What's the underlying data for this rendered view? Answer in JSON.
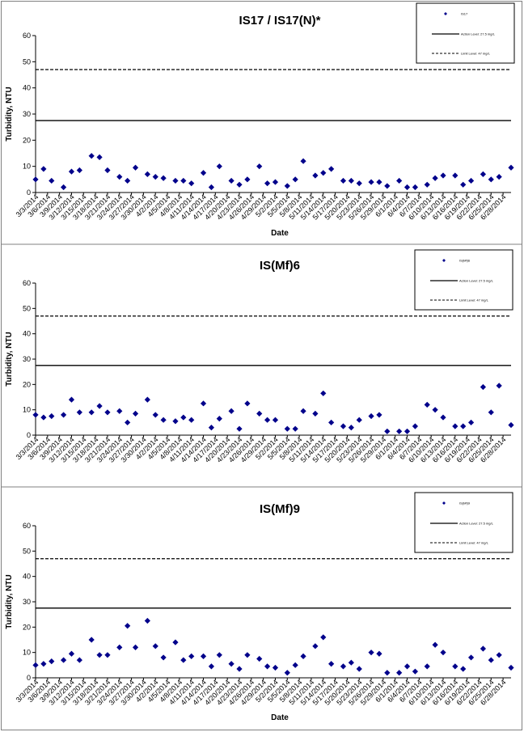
{
  "chart_data": [
    {
      "type": "scatter",
      "title": "IS17 / IS17(N)*",
      "xlabel": "Date",
      "ylabel": "Turbidity, NTU",
      "ylim": [
        0,
        60
      ],
      "yticks": [
        "0",
        "10",
        "20",
        "30",
        "40",
        "50",
        "60"
      ],
      "x_ticks": [
        "3/3/2014",
        "3/6/2014",
        "3/9/2014",
        "3/12/2014",
        "3/15/2014",
        "3/18/2014",
        "3/21/2014",
        "3/24/2014",
        "3/27/2014",
        "3/30/2014",
        "4/2/2014",
        "4/5/2014",
        "4/8/2014",
        "4/11/2014",
        "4/14/2014",
        "4/17/2014",
        "4/20/2014",
        "4/23/2014",
        "4/26/2014",
        "4/29/2014",
        "5/2/2014",
        "5/5/2014",
        "5/8/2014",
        "5/11/2014",
        "5/14/2014",
        "5/17/2014",
        "5/20/2014",
        "5/23/2014",
        "5/26/2014",
        "5/29/2014",
        "6/1/2014",
        "6/4/2014",
        "6/7/2014",
        "6/10/2014",
        "6/13/2014",
        "6/16/2014",
        "6/19/2014",
        "6/22/2014",
        "6/25/2014",
        "6/28/2014"
      ],
      "legend": {
        "placement": "top-right",
        "point_label": "IS17",
        "action_label": "Action Level: 27.5 mg/L",
        "limit_label": "Limit Level: 47 mg/L"
      },
      "action_level": 27.5,
      "limit_level": 47,
      "series": [
        {
          "name": "IS17",
          "color": "#00008B",
          "points": [
            [
              "3/3/2014",
              5
            ],
            [
              "3/5/2014",
              9
            ],
            [
              "3/7/2014",
              4.5
            ],
            [
              "3/10/2014",
              2
            ],
            [
              "3/12/2014",
              8
            ],
            [
              "3/14/2014",
              8.5
            ],
            [
              "3/17/2014",
              14
            ],
            [
              "3/19/2014",
              13.5
            ],
            [
              "3/21/2014",
              8.5
            ],
            [
              "3/24/2014",
              6
            ],
            [
              "3/26/2014",
              4.5
            ],
            [
              "3/28/2014",
              9.5
            ],
            [
              "3/31/2014",
              7
            ],
            [
              "4/2/2014",
              6
            ],
            [
              "4/4/2014",
              5.5
            ],
            [
              "4/7/2014",
              4.5
            ],
            [
              "4/9/2014",
              4.5
            ],
            [
              "4/11/2014",
              3.5
            ],
            [
              "4/14/2014",
              7.5
            ],
            [
              "4/16/2014",
              2
            ],
            [
              "4/18/2014",
              10
            ],
            [
              "4/21/2014",
              4.5
            ],
            [
              "4/23/2014",
              3
            ],
            [
              "4/25/2014",
              5
            ],
            [
              "4/28/2014",
              10
            ],
            [
              "4/30/2014",
              3.5
            ],
            [
              "5/2/2014",
              4
            ],
            [
              "5/5/2014",
              2.5
            ],
            [
              "5/7/2014",
              5
            ],
            [
              "5/9/2014",
              12
            ],
            [
              "5/12/2014",
              6.5
            ],
            [
              "5/14/2014",
              7.5
            ],
            [
              "5/16/2014",
              9
            ],
            [
              "5/19/2014",
              4.5
            ],
            [
              "5/21/2014",
              4.5
            ],
            [
              "5/23/2014",
              3.5
            ],
            [
              "5/26/2014",
              4
            ],
            [
              "5/28/2014",
              4
            ],
            [
              "5/30/2014",
              2.5
            ],
            [
              "6/2/2014",
              4.5
            ],
            [
              "6/4/2014",
              2
            ],
            [
              "6/6/2014",
              2
            ],
            [
              "6/9/2014",
              3
            ],
            [
              "6/11/2014",
              5.5
            ],
            [
              "6/13/2014",
              6.5
            ],
            [
              "6/16/2014",
              6.5
            ],
            [
              "6/18/2014",
              3
            ],
            [
              "6/20/2014",
              4.5
            ],
            [
              "6/23/2014",
              7
            ],
            [
              "6/25/2014",
              5
            ],
            [
              "6/27/2014",
              6
            ],
            [
              "6/30/2014",
              9.5
            ]
          ]
        }
      ]
    },
    {
      "type": "scatter",
      "title": "IS(Mf)6",
      "xlabel": "",
      "ylabel": "Turbidity, NTU",
      "ylim": [
        0,
        60
      ],
      "yticks": [
        "0",
        "10",
        "20",
        "30",
        "40",
        "50",
        "60"
      ],
      "x_ticks": [
        "3/3/2014",
        "3/6/2014",
        "3/9/2014",
        "3/12/2014",
        "3/15/2014",
        "3/18/2014",
        "3/21/2014",
        "3/24/2014",
        "3/27/2014",
        "3/30/2014",
        "4/2/2014",
        "4/5/2014",
        "4/8/2014",
        "4/11/2014",
        "4/14/2014",
        "4/17/2014",
        "4/20/2014",
        "4/23/2014",
        "4/26/2014",
        "4/29/2014",
        "5/2/2014",
        "5/5/2014",
        "5/8/2014",
        "5/11/2014",
        "5/14/2014",
        "5/17/2014",
        "5/20/2014",
        "5/23/2014",
        "5/26/2014",
        "5/29/2014",
        "6/1/2014",
        "6/4/2014",
        "6/7/2014",
        "6/10/2014",
        "6/13/2014",
        "6/16/2014",
        "6/19/2014",
        "6/22/2014",
        "6/25/2014",
        "6/28/2014"
      ],
      "legend": {
        "placement": "top-right",
        "point_label": "IS(Mf)6",
        "action_label": "Action Level: 27.5 mg/L",
        "limit_label": "Limit Level: 47 mg/L"
      },
      "action_level": 27.5,
      "limit_level": 47,
      "series": [
        {
          "name": "IS(Mf)6",
          "color": "#00008B",
          "points": [
            [
              "3/3/2014",
              8
            ],
            [
              "3/5/2014",
              7
            ],
            [
              "3/7/2014",
              7.5
            ],
            [
              "3/10/2014",
              8
            ],
            [
              "3/12/2014",
              14
            ],
            [
              "3/14/2014",
              9
            ],
            [
              "3/17/2014",
              9
            ],
            [
              "3/19/2014",
              11.5
            ],
            [
              "3/21/2014",
              9
            ],
            [
              "3/24/2014",
              9.5
            ],
            [
              "3/26/2014",
              5
            ],
            [
              "3/28/2014",
              8.5
            ],
            [
              "3/31/2014",
              14
            ],
            [
              "4/2/2014",
              8
            ],
            [
              "4/4/2014",
              6
            ],
            [
              "4/7/2014",
              5.5
            ],
            [
              "4/9/2014",
              7
            ],
            [
              "4/11/2014",
              6
            ],
            [
              "4/14/2014",
              12.5
            ],
            [
              "4/16/2014",
              3
            ],
            [
              "4/18/2014",
              6.5
            ],
            [
              "4/21/2014",
              9.5
            ],
            [
              "4/23/2014",
              2.5
            ],
            [
              "4/25/2014",
              12.5
            ],
            [
              "4/28/2014",
              8.5
            ],
            [
              "4/30/2014",
              6
            ],
            [
              "5/2/2014",
              6
            ],
            [
              "5/5/2014",
              2.5
            ],
            [
              "5/7/2014",
              2.5
            ],
            [
              "5/9/2014",
              9.5
            ],
            [
              "5/12/2014",
              8.5
            ],
            [
              "5/14/2014",
              16.5
            ],
            [
              "5/16/2014",
              5
            ],
            [
              "5/19/2014",
              3.5
            ],
            [
              "5/21/2014",
              3
            ],
            [
              "5/23/2014",
              6
            ],
            [
              "5/26/2014",
              7.5
            ],
            [
              "5/28/2014",
              8
            ],
            [
              "5/30/2014",
              1.5
            ],
            [
              "6/2/2014",
              1.5
            ],
            [
              "6/4/2014",
              1.5
            ],
            [
              "6/6/2014",
              3.5
            ],
            [
              "6/9/2014",
              12
            ],
            [
              "6/11/2014",
              10
            ],
            [
              "6/13/2014",
              7
            ],
            [
              "6/16/2014",
              3.5
            ],
            [
              "6/18/2014",
              3.5
            ],
            [
              "6/20/2014",
              5
            ],
            [
              "6/23/2014",
              19
            ],
            [
              "6/25/2014",
              9
            ],
            [
              "6/27/2014",
              19.5
            ],
            [
              "6/30/2014",
              4
            ]
          ]
        }
      ]
    },
    {
      "type": "scatter",
      "title": "IS(Mf)9",
      "xlabel": "Date",
      "ylabel": "Turbidity, NTU",
      "ylim": [
        0,
        60
      ],
      "yticks": [
        "0",
        "10",
        "20",
        "30",
        "40",
        "50",
        "60"
      ],
      "x_ticks": [
        "3/3/2014",
        "3/6/2014",
        "3/9/2014",
        "3/12/2014",
        "3/15/2014",
        "3/18/2014",
        "3/21/2014",
        "3/24/2014",
        "3/27/2014",
        "3/30/2014",
        "4/2/2014",
        "4/5/2014",
        "4/8/2014",
        "4/11/2014",
        "4/14/2014",
        "4/17/2014",
        "4/20/2014",
        "4/23/2014",
        "4/26/2014",
        "4/29/2014",
        "5/2/2014",
        "5/5/2014",
        "5/8/2014",
        "5/11/2014",
        "5/14/2014",
        "5/17/2014",
        "5/20/2014",
        "5/23/2014",
        "5/26/2014",
        "5/29/2014",
        "6/1/2014",
        "6/4/2014",
        "6/7/2014",
        "6/10/2014",
        "6/13/2014",
        "6/16/2014",
        "6/19/2014",
        "6/22/2014",
        "6/25/2014",
        "6/28/2014"
      ],
      "legend": {
        "placement": "top-right",
        "point_label": "IS(Mf)9",
        "action_label": "Action Level: 27.5 mg/L",
        "limit_label": "Limit Level: 47 mg/L"
      },
      "action_level": 27.5,
      "limit_level": 47,
      "series": [
        {
          "name": "IS(Mf)9",
          "color": "#00008B",
          "points": [
            [
              "3/3/2014",
              5
            ],
            [
              "3/5/2014",
              5.5
            ],
            [
              "3/7/2014",
              6.5
            ],
            [
              "3/10/2014",
              7
            ],
            [
              "3/12/2014",
              9.5
            ],
            [
              "3/14/2014",
              7
            ],
            [
              "3/17/2014",
              15
            ],
            [
              "3/19/2014",
              9
            ],
            [
              "3/21/2014",
              9
            ],
            [
              "3/24/2014",
              12
            ],
            [
              "3/26/2014",
              20.5
            ],
            [
              "3/28/2014",
              12
            ],
            [
              "3/31/2014",
              22.5
            ],
            [
              "4/2/2014",
              12.5
            ],
            [
              "4/4/2014",
              8
            ],
            [
              "4/7/2014",
              14
            ],
            [
              "4/9/2014",
              7
            ],
            [
              "4/11/2014",
              8.5
            ],
            [
              "4/14/2014",
              8.5
            ],
            [
              "4/16/2014",
              4.5
            ],
            [
              "4/18/2014",
              9
            ],
            [
              "4/21/2014",
              5.5
            ],
            [
              "4/23/2014",
              3.5
            ],
            [
              "4/25/2014",
              9
            ],
            [
              "4/28/2014",
              7.5
            ],
            [
              "4/30/2014",
              4.5
            ],
            [
              "5/2/2014",
              4
            ],
            [
              "5/5/2014",
              2
            ],
            [
              "5/7/2014",
              5
            ],
            [
              "5/9/2014",
              8.5
            ],
            [
              "5/12/2014",
              12.5
            ],
            [
              "5/14/2014",
              16
            ],
            [
              "5/16/2014",
              5.5
            ],
            [
              "5/19/2014",
              4.5
            ],
            [
              "5/21/2014",
              6
            ],
            [
              "5/23/2014",
              3.5
            ],
            [
              "5/26/2014",
              10
            ],
            [
              "5/28/2014",
              9.5
            ],
            [
              "5/30/2014",
              2
            ],
            [
              "6/2/2014",
              2
            ],
            [
              "6/4/2014",
              4.5
            ],
            [
              "6/6/2014",
              2.5
            ],
            [
              "6/9/2014",
              4.5
            ],
            [
              "6/11/2014",
              13
            ],
            [
              "6/13/2014",
              10
            ],
            [
              "6/16/2014",
              4.5
            ],
            [
              "6/18/2014",
              3.5
            ],
            [
              "6/20/2014",
              8
            ],
            [
              "6/23/2014",
              11.5
            ],
            [
              "6/25/2014",
              7
            ],
            [
              "6/27/2014",
              9
            ],
            [
              "6/30/2014",
              4
            ]
          ]
        }
      ]
    }
  ]
}
